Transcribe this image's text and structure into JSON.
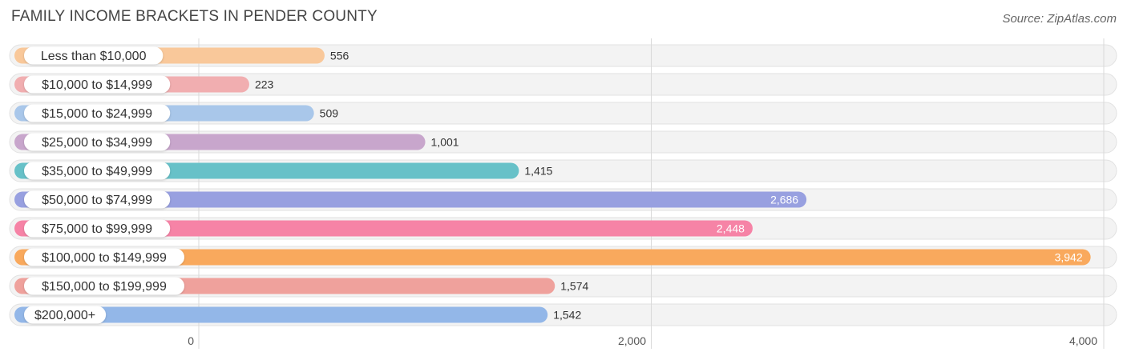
{
  "title": "FAMILY INCOME BRACKETS IN PENDER COUNTY",
  "source": "Source: ZipAtlas.com",
  "chart_data": {
    "type": "bar",
    "orientation": "horizontal",
    "title": "FAMILY INCOME BRACKETS IN PENDER COUNTY",
    "categories": [
      "Less than $10,000",
      "$10,000 to $14,999",
      "$15,000 to $24,999",
      "$25,000 to $34,999",
      "$35,000 to $49,999",
      "$50,000 to $74,999",
      "$75,000 to $99,999",
      "$100,000 to $149,999",
      "$150,000 to $199,999",
      "$200,000+"
    ],
    "values": [
      556,
      223,
      509,
      1001,
      1415,
      2686,
      2448,
      3942,
      1574,
      1542
    ],
    "value_labels": [
      "556",
      "223",
      "509",
      "1,001",
      "1,415",
      "2,686",
      "2,448",
      "3,942",
      "1,574",
      "1,542"
    ],
    "colors": [
      "#f9c89a",
      "#f1aeb0",
      "#a9c7ea",
      "#c8a6cc",
      "#67c1c8",
      "#98a0e0",
      "#f683a6",
      "#f9a95d",
      "#efa19c",
      "#93b7e8"
    ],
    "xlim": [
      0,
      4000
    ],
    "xticks": [
      0,
      2000,
      4000
    ],
    "xtick_labels": [
      "0",
      "2,000",
      "4,000"
    ],
    "grid": true,
    "xlabel": "",
    "ylabel": ""
  }
}
